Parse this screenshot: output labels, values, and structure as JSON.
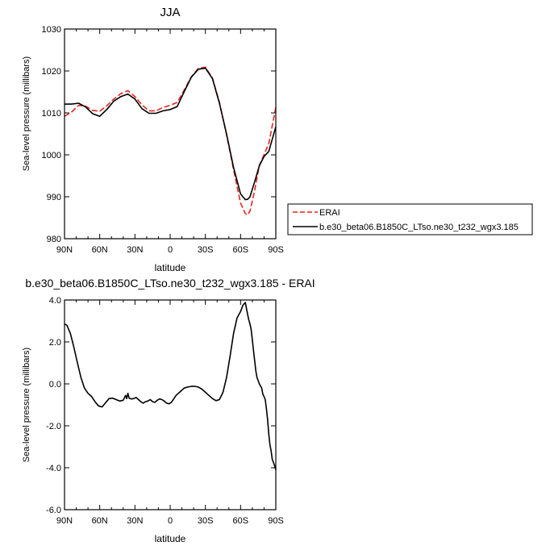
{
  "chart_data": [
    {
      "type": "line",
      "title": "JJA",
      "xlabel": "latitude",
      "ylabel": "Sea-level pressure (millibars)",
      "xlim": [
        90,
        -90
      ],
      "ylim": [
        980,
        1030
      ],
      "xticks": [
        90,
        60,
        30,
        0,
        -30,
        -60,
        -90
      ],
      "xticklabels": [
        "90N",
        "60N",
        "30N",
        "0",
        "30S",
        "60S",
        "90S"
      ],
      "yticks": [
        980,
        990,
        1000,
        1010,
        1020,
        1030
      ],
      "yticklabels": [
        "980",
        "990",
        "1000",
        "1010",
        "1020",
        "1030"
      ],
      "legend_position": "right",
      "series": [
        {
          "name": "ERAI",
          "color": "#e8251f",
          "style": "dashed",
          "x": [
            90,
            84,
            78,
            72,
            66,
            60,
            54,
            48,
            42,
            36,
            30,
            24,
            18,
            12,
            6,
            0,
            -6,
            -12,
            -18,
            -24,
            -30,
            -36,
            -42,
            -48,
            -54,
            -60,
            -64,
            -66,
            -68,
            -72,
            -76,
            -80,
            -84,
            -90
          ],
          "y": [
            1009.2,
            1010.2,
            1011.8,
            1011.6,
            1010.6,
            1010.4,
            1011.7,
            1013.3,
            1014.6,
            1015.3,
            1013.9,
            1011.9,
            1010.5,
            1010.5,
            1011.3,
            1011.8,
            1012.5,
            1015.5,
            1018.6,
            1020.6,
            1020.9,
            1018.3,
            1012.5,
            1004.8,
            996.5,
            988.5,
            986.0,
            985.7,
            986.6,
            991.5,
            997.5,
            1000.0,
            1002.7,
            1011.3
          ]
        },
        {
          "name": "b.e30_beta06.B1850C_LTso.ne30_t232_wgx3.185",
          "color": "#000000",
          "style": "solid",
          "x": [
            90,
            84,
            78,
            72,
            66,
            60,
            54,
            48,
            42,
            36,
            30,
            24,
            18,
            12,
            6,
            0,
            -6,
            -12,
            -18,
            -24,
            -30,
            -36,
            -42,
            -48,
            -54,
            -60,
            -64,
            -66,
            -68,
            -72,
            -76,
            -80,
            -84,
            -90
          ],
          "y": [
            1012.1,
            1012.1,
            1012.3,
            1011.4,
            1009.8,
            1009.2,
            1010.8,
            1012.8,
            1013.9,
            1014.5,
            1013.3,
            1011.0,
            1009.9,
            1009.9,
            1010.5,
            1010.8,
            1011.5,
            1015.1,
            1018.5,
            1020.4,
            1020.7,
            1018.2,
            1012.3,
            1005.0,
            997.0,
            990.7,
            989.3,
            989.4,
            990.0,
            993.6,
            997.4,
            999.6,
            1000.8,
            1006.7
          ]
        }
      ]
    },
    {
      "type": "line",
      "title": "b.e30_beta06.B1850C_LTso.ne30_t232_wgx3.185 - ERAI",
      "xlabel": "latitude",
      "ylabel": "Sea-level pressure (millibars)",
      "xlim": [
        90,
        -90
      ],
      "ylim": [
        -6,
        4
      ],
      "xticks": [
        90,
        60,
        30,
        0,
        -30,
        -60,
        -90
      ],
      "xticklabels": [
        "90N",
        "60N",
        "30N",
        "0",
        "30S",
        "60S",
        "90S"
      ],
      "yticks": [
        -6,
        -4,
        -2,
        0,
        2,
        4
      ],
      "yticklabels": [
        "-6.0",
        "-4.0",
        "-2.0",
        "0.0",
        "2.0",
        "4.0"
      ],
      "series": [
        {
          "color": "#000000",
          "style": "solid",
          "x": [
            90,
            88,
            85,
            82,
            79,
            76,
            73,
            70,
            67,
            64,
            61,
            58,
            55,
            52,
            49,
            46,
            43,
            40,
            38,
            37,
            36,
            35,
            33,
            31,
            29,
            27,
            25,
            23,
            21,
            19,
            17,
            15,
            13,
            11,
            9,
            7,
            5,
            3,
            1,
            -1,
            -3,
            -5,
            -7,
            -9,
            -12,
            -15,
            -18,
            -21,
            -24,
            -27,
            -30,
            -33,
            -36,
            -39,
            -42,
            -45,
            -48,
            -51,
            -54,
            -57,
            -60,
            -62,
            -64,
            -65,
            -66,
            -67,
            -68,
            -69,
            -70,
            -71,
            -72,
            -73,
            -74,
            -75,
            -76,
            -77,
            -78,
            -79,
            -80,
            -81,
            -82,
            -83,
            -84,
            -85,
            -86,
            -87,
            -88,
            -89,
            -90
          ],
          "y": [
            2.85,
            2.8,
            2.4,
            1.75,
            1.0,
            0.3,
            -0.2,
            -0.45,
            -0.6,
            -0.85,
            -1.05,
            -1.1,
            -0.9,
            -0.7,
            -0.68,
            -0.75,
            -0.82,
            -0.78,
            -0.55,
            -0.7,
            -0.45,
            -0.68,
            -0.72,
            -0.7,
            -0.65,
            -0.75,
            -0.85,
            -0.92,
            -0.85,
            -0.82,
            -0.75,
            -0.85,
            -0.88,
            -0.78,
            -0.72,
            -0.75,
            -0.82,
            -0.92,
            -0.95,
            -0.88,
            -0.72,
            -0.55,
            -0.45,
            -0.35,
            -0.2,
            -0.15,
            -0.12,
            -0.12,
            -0.15,
            -0.25,
            -0.4,
            -0.55,
            -0.7,
            -0.8,
            -0.75,
            -0.4,
            0.3,
            1.3,
            2.4,
            3.15,
            3.45,
            3.75,
            3.88,
            3.6,
            3.3,
            3.05,
            2.85,
            2.6,
            2.1,
            1.6,
            1.1,
            0.6,
            0.3,
            0.15,
            0.0,
            -0.1,
            -0.2,
            -0.5,
            -0.6,
            -0.75,
            -1.2,
            -1.7,
            -2.4,
            -2.9,
            -3.2,
            -3.6,
            -3.75,
            -3.9,
            -4.1
          ]
        }
      ]
    }
  ]
}
